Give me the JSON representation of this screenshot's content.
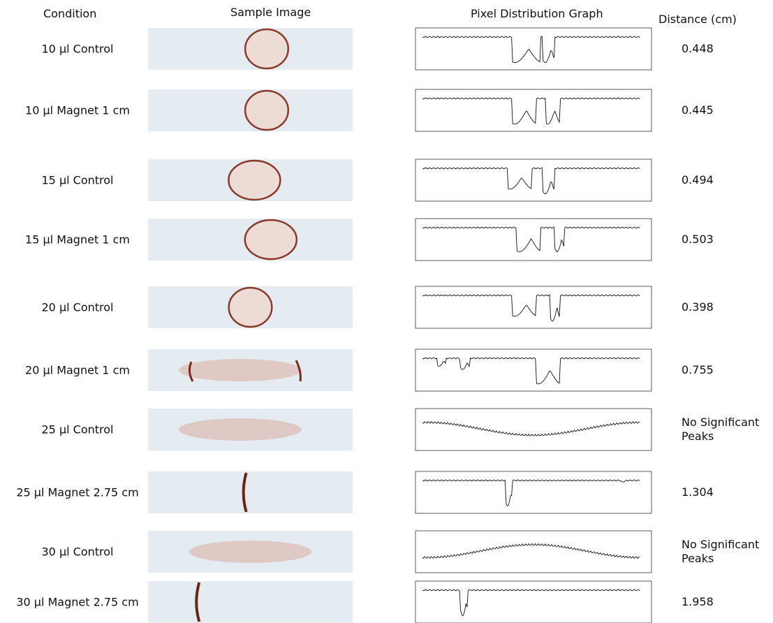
{
  "header": {
    "condition": "Condition",
    "sample_image": "Sample Image",
    "graph": "Pixel Distribution Graph",
    "distance": "Distance (cm)"
  },
  "rows": [
    {
      "condition": "10 µl Control",
      "distance": "0.448"
    },
    {
      "condition": "10 µl Magnet 1 cm",
      "distance": "0.445"
    },
    {
      "condition": "15 µl Control",
      "distance": "0.494"
    },
    {
      "condition": "15 µl Magnet 1 cm",
      "distance": "0.503"
    },
    {
      "condition": "20 µl Control",
      "distance": "0.398"
    },
    {
      "condition": "20 µl Magnet 1 cm",
      "distance": "0.755"
    },
    {
      "condition": "25 µl Control",
      "distance": "No Significant Peaks"
    },
    {
      "condition": "25 µl Magnet 2.75 cm",
      "distance": "1.304"
    },
    {
      "condition": "30 µl Control",
      "distance": "No Significant Peaks"
    },
    {
      "condition": "30 µl Magnet 2.75 cm",
      "distance": "1.958"
    }
  ]
}
